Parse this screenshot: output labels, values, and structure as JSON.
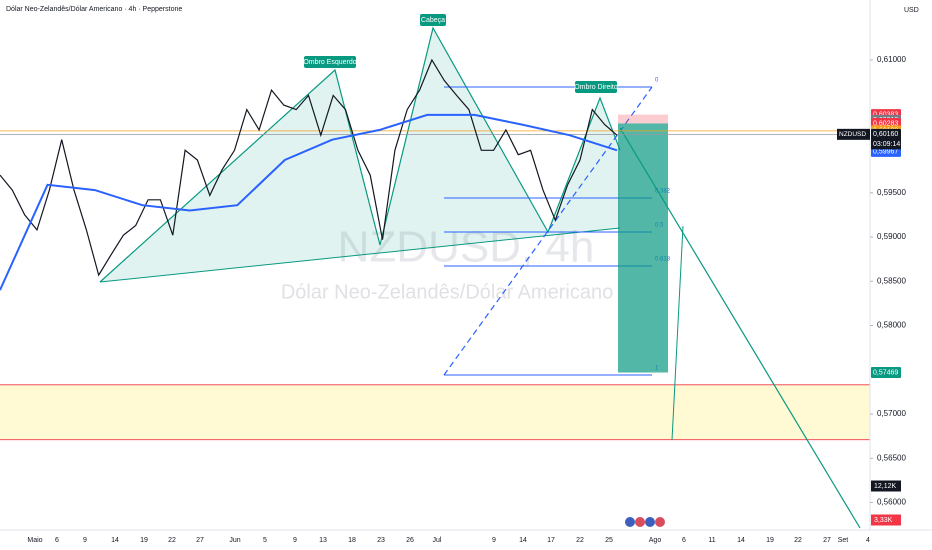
{
  "header": {
    "title": "Dólar Neo-Zelandês/Dólar Americano · 4h · Pepperstone",
    "currency": "USD"
  },
  "watermark": {
    "symbol": "NZDUSD, 4h",
    "description": "Dólar Neo-Zelandês/Dólar Americano"
  },
  "chart_data": {
    "type": "line",
    "ylim": [
      0.55746,
      0.61678
    ],
    "yticks": [
      {
        "value": 0.61,
        "label": "0,61000"
      },
      {
        "value": 0.595,
        "label": "0,59500"
      },
      {
        "value": 0.59,
        "label": "0,59000"
      },
      {
        "value": 0.585,
        "label": "0,58500"
      },
      {
        "value": 0.58,
        "label": "0,58000"
      },
      {
        "value": 0.57,
        "label": "0,57000"
      },
      {
        "value": 0.565,
        "label": "0,56500"
      },
      {
        "value": 0.56,
        "label": "0,56000"
      }
    ],
    "series": [
      {
        "color": "#131722",
        "values": [
          0.597,
          0.5953,
          0.5925,
          0.5908,
          0.5953,
          0.601,
          0.5953,
          0.5908,
          0.5857,
          0.588,
          0.5902,
          0.5913,
          0.5942,
          0.5942,
          0.5902,
          0.5998,
          0.5987,
          0.5947,
          0.5976,
          0.5998,
          0.6044,
          0.6021,
          0.6066,
          0.6049,
          0.6044,
          0.606,
          0.6015,
          0.606,
          0.6044,
          0.5998,
          0.597,
          0.5897,
          0.5998,
          0.6044,
          0.6066,
          0.61,
          0.6077,
          0.606,
          0.6044,
          0.5998,
          0.5998,
          0.6021,
          0.5993,
          0.5998,
          0.5953,
          0.5919,
          0.5959,
          0.5987,
          0.6044,
          0.6027,
          0.6015
        ]
      },
      {
        "color": "#2962ff",
        "values": [
          0.584,
          0.5959,
          0.5953,
          0.5936,
          0.593,
          0.5936,
          0.5987,
          0.601,
          0.6021,
          0.6038,
          0.6038,
          0.6027,
          0.6015,
          0.5998
        ]
      }
    ],
    "zone": [
      0.5671,
      0.5733
    ],
    "fib": [
      {
        "ratio": 0,
        "price": 0.60695
      },
      {
        "ratio": 0.382,
        "price": 0.59441
      },
      {
        "ratio": 0.5,
        "price": 0.59056
      },
      {
        "ratio": 0.618,
        "price": 0.58672
      },
      {
        "ratio": 1,
        "price": 0.57441
      }
    ],
    "price_labels": [
      {
        "value": 0.60383,
        "label": "0,60383",
        "color": "#f23645"
      },
      {
        "value": 0.60318,
        "label": "0,60318",
        "color": "#787b86"
      },
      {
        "value": 0.60283,
        "label": "0,60283",
        "color": "#f23645"
      },
      {
        "value": 0.60199,
        "label": "0,60199",
        "color": "#f7a21b"
      },
      {
        "value": 0.6016,
        "label": "0,60160",
        "color": "#131722"
      },
      {
        "value": 0.59967,
        "label": "0,59967",
        "color": "#2962ff"
      },
      {
        "value": 0.57469,
        "label": "0,57469",
        "color": "#089981"
      }
    ],
    "symbol_badge": "NZDUSD",
    "countdown": "03:09:14",
    "pane_labels": [
      {
        "value": 12120,
        "label": "12,12K",
        "color": "#131722"
      },
      {
        "value": 3330,
        "label": "3,33K",
        "color": "#f23645"
      }
    ],
    "annotations": [
      "Ombro Esquerdo",
      "Cabeça",
      "Ombro Direito"
    ],
    "time_labels": [
      "Maio",
      "6",
      "9",
      "14",
      "19",
      "22",
      "27",
      "Jun",
      "5",
      "9",
      "13",
      "18",
      "23",
      "26",
      "Jul",
      "9",
      "14",
      "17",
      "22",
      "25",
      "Ago",
      "6",
      "11",
      "14",
      "19",
      "22",
      "27",
      "Set",
      "4"
    ]
  }
}
